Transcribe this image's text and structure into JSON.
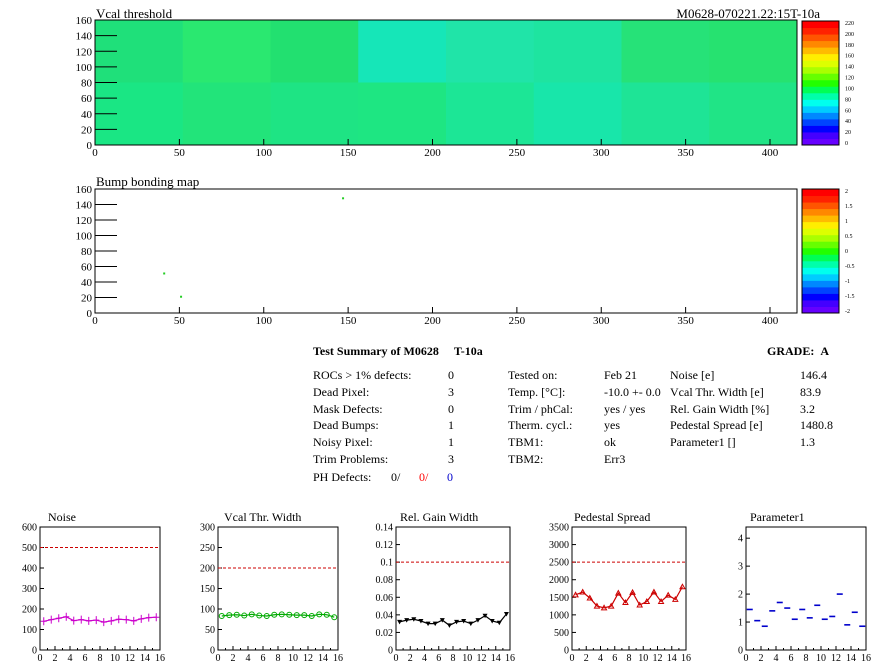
{
  "maps": [
    {
      "title": "Vcal threshold",
      "id_label": "M0628-070221.22:15T-10a",
      "xlim": [
        0,
        416
      ],
      "ylim": [
        0,
        160
      ],
      "xticks": [
        "0",
        "50",
        "100",
        "150",
        "200",
        "250",
        "300",
        "350",
        "400"
      ],
      "yticks": [
        "0",
        "20",
        "40",
        "60",
        "80",
        "100",
        "120",
        "140",
        "160"
      ],
      "palette_ticks": [
        "0",
        "20",
        "40",
        "60",
        "80",
        "100",
        "120",
        "140",
        "160",
        "180",
        "200",
        "220"
      ],
      "roc_colors_top": [
        "#1fe07a",
        "#2ae870",
        "#22e070",
        "#16e6b8",
        "#20e4a8",
        "#1ee4a0",
        "#26e278",
        "#26e270"
      ],
      "roc_colors_bottom": [
        "#1ae684",
        "#22e47a",
        "#1ee484",
        "#1ee682",
        "#1ce696",
        "#18e6aa",
        "#1ee496",
        "#20e486"
      ]
    },
    {
      "title": "Bump bonding map",
      "xlim": [
        0,
        416
      ],
      "ylim": [
        0,
        160
      ],
      "xticks": [
        "0",
        "50",
        "100",
        "150",
        "200",
        "250",
        "300",
        "350",
        "400"
      ],
      "yticks": [
        "0",
        "20",
        "40",
        "60",
        "80",
        "100",
        "120",
        "140",
        "160"
      ],
      "palette_ticks": [
        "-2",
        "-1.5",
        "-1",
        "-0.5",
        "0",
        "0.5",
        "1",
        "1.5",
        "2"
      ],
      "points": [
        [
          147,
          148
        ],
        [
          41,
          51
        ],
        [
          51,
          21
        ]
      ]
    }
  ],
  "summary": {
    "title": "Test Summary of M0628",
    "tag": "T-10a",
    "grade_label": "GRADE:",
    "grade": "A",
    "col1": [
      {
        "label": "ROCs > 1% defects:",
        "value": "0"
      },
      {
        "label": "Dead Pixel:",
        "value": "3"
      },
      {
        "label": "Mask Defects:",
        "value": "0"
      },
      {
        "label": "Dead Bumps:",
        "value": "1"
      },
      {
        "label": "Noisy Pixel:",
        "value": "1"
      },
      {
        "label": "Trim Problems:",
        "value": "3"
      }
    ],
    "ph_label": "PH Defects:",
    "ph_values": [
      "0/",
      "0/",
      "0"
    ],
    "ph_colors": [
      "#000000",
      "#ff0000",
      "#0000cc"
    ],
    "col2": [
      {
        "label": "Tested on:",
        "value": "Feb 21"
      },
      {
        "label": "Temp. [°C]:",
        "value": "-10.0 +- 0.0"
      },
      {
        "label": "Trim / phCal:",
        "value": "yes / yes"
      },
      {
        "label": "Therm. cycl.:",
        "value": "yes"
      },
      {
        "label": "TBM1:",
        "value": "ok"
      },
      {
        "label": "TBM2:",
        "value": "Err3"
      }
    ],
    "col3": [
      {
        "label": "Noise [e]",
        "value": "146.4"
      },
      {
        "label": "Vcal Thr. Width [e]",
        "value": "83.9"
      },
      {
        "label": "Rel. Gain Width [%]",
        "value": "3.2"
      },
      {
        "label": "Pedestal Spread [e]",
        "value": "1480.8"
      },
      {
        "label": "Parameter1 []",
        "value": "1.3"
      }
    ]
  },
  "chart_data": [
    {
      "type": "line",
      "title": "Noise",
      "color": "#cc00cc",
      "marker": "cross",
      "x": [
        0,
        1,
        2,
        3,
        4,
        5,
        6,
        7,
        8,
        9,
        10,
        11,
        12,
        13,
        14,
        15
      ],
      "values": [
        140,
        148,
        155,
        162,
        143,
        148,
        142,
        146,
        136,
        142,
        150,
        148,
        142,
        152,
        158,
        160
      ],
      "ylim": [
        0,
        600
      ],
      "yticks": [
        "0",
        "100",
        "200",
        "300",
        "400",
        "500",
        "600"
      ],
      "xticks": [
        "0",
        "2",
        "4",
        "6",
        "8",
        "10",
        "12",
        "14",
        "16"
      ],
      "cut": 500
    },
    {
      "type": "line",
      "title": "Vcal Thr. Width",
      "color": "#00aa00",
      "marker": "circle",
      "x": [
        0,
        1,
        2,
        3,
        4,
        5,
        6,
        7,
        8,
        9,
        10,
        11,
        12,
        13,
        14,
        15
      ],
      "values": [
        83,
        85,
        86,
        84,
        87,
        84,
        83,
        86,
        87,
        86,
        85,
        85,
        83,
        87,
        86,
        80
      ],
      "ylim": [
        0,
        300
      ],
      "yticks": [
        "0",
        "50",
        "100",
        "150",
        "200",
        "250",
        "300"
      ],
      "xticks": [
        "0",
        "2",
        "4",
        "6",
        "8",
        "10",
        "12",
        "14",
        "16"
      ],
      "cut": 200
    },
    {
      "type": "line",
      "title": "Rel. Gain Width",
      "color": "#000000",
      "marker": "triangle-down",
      "x": [
        0,
        1,
        2,
        3,
        4,
        5,
        6,
        7,
        8,
        9,
        10,
        11,
        12,
        13,
        14,
        15
      ],
      "values": [
        0.032,
        0.034,
        0.035,
        0.033,
        0.03,
        0.03,
        0.034,
        0.028,
        0.032,
        0.033,
        0.03,
        0.034,
        0.039,
        0.033,
        0.031,
        0.041
      ],
      "ylim": [
        0,
        0.14
      ],
      "yticks": [
        "0",
        "0.02",
        "0.04",
        "0.06",
        "0.08",
        "0.1",
        "0.12",
        "0.14"
      ],
      "xticks": [
        "0",
        "2",
        "4",
        "6",
        "8",
        "10",
        "12",
        "14",
        "16"
      ],
      "cut": 0.1
    },
    {
      "type": "line",
      "title": "Pedestal Spread",
      "color": "#cc0000",
      "marker": "triangle-up",
      "x": [
        0,
        1,
        2,
        3,
        4,
        5,
        6,
        7,
        8,
        9,
        10,
        11,
        12,
        13,
        14,
        15
      ],
      "values": [
        1570,
        1650,
        1480,
        1250,
        1200,
        1250,
        1620,
        1350,
        1640,
        1280,
        1380,
        1650,
        1380,
        1560,
        1440,
        1800
      ],
      "ylim": [
        0,
        3500
      ],
      "yticks": [
        "0",
        "500",
        "1000",
        "1500",
        "2000",
        "2500",
        "3000",
        "3500"
      ],
      "xticks": [
        "0",
        "2",
        "4",
        "6",
        "8",
        "10",
        "12",
        "14",
        "16"
      ],
      "cut": 2500
    },
    {
      "type": "line",
      "title": "Parameter1",
      "color": "#0000cc",
      "marker": "hbar",
      "x": [
        0,
        1,
        2,
        3,
        4,
        5,
        6,
        7,
        8,
        9,
        10,
        11,
        12,
        13,
        14,
        15
      ],
      "values": [
        1.45,
        1.05,
        0.85,
        1.4,
        1.7,
        1.5,
        1.1,
        1.45,
        1.15,
        1.6,
        1.1,
        1.2,
        2.0,
        0.9,
        1.35,
        0.85
      ],
      "ylim": [
        0,
        4.4
      ],
      "yticks": [
        "0",
        "1",
        "2",
        "3",
        "4"
      ],
      "xticks": [
        "0",
        "2",
        "4",
        "6",
        "8",
        "10",
        "12",
        "14",
        "16"
      ],
      "cut": null
    }
  ]
}
